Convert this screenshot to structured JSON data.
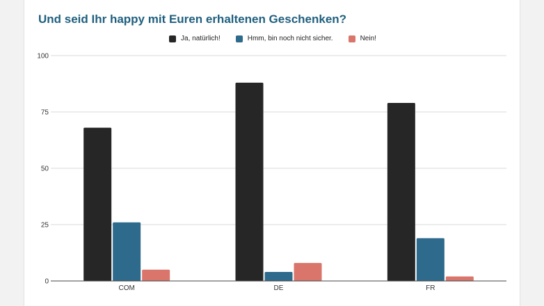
{
  "chart_data": {
    "type": "bar",
    "title": "Und seid Ihr happy mit Euren erhaltenen Geschenken?",
    "categories": [
      "COM",
      "DE",
      "FR"
    ],
    "series": [
      {
        "name": "Ja, natürlich!",
        "color": "#262626",
        "values": [
          68,
          88,
          79
        ]
      },
      {
        "name": "Hmm, bin noch nicht sicher.",
        "color": "#2e6a8c",
        "values": [
          26,
          4,
          19
        ]
      },
      {
        "name": "Nein!",
        "color": "#d9756b",
        "values": [
          5,
          8,
          2
        ]
      }
    ],
    "ylim": [
      0,
      100
    ],
    "yticks": [
      "0",
      "25",
      "50",
      "75",
      "100"
    ],
    "grid": true,
    "legend_position": "top"
  }
}
